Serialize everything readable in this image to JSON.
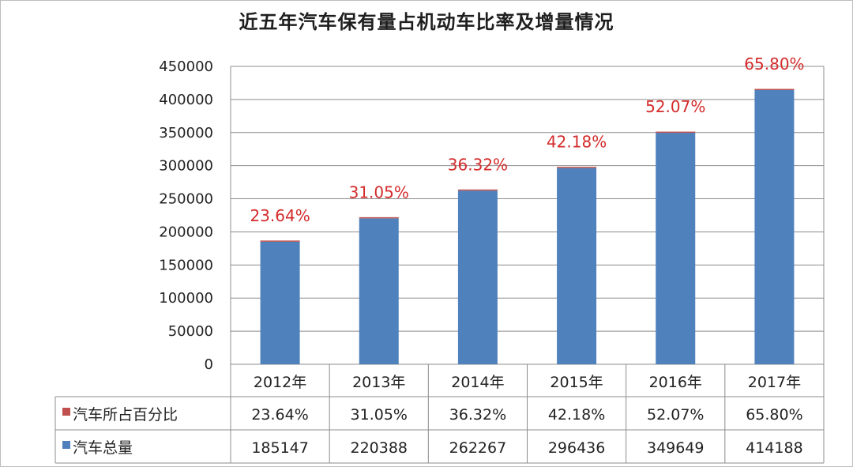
{
  "chart_data": {
    "type": "bar",
    "title": "近五年汽车保有量占机动车比率及增量情况",
    "categories": [
      "2012年",
      "2013年",
      "2014年",
      "2015年",
      "2016年",
      "2017年"
    ],
    "ylim": [
      0,
      450000
    ],
    "yticks": [
      "0",
      "50000",
      "100000",
      "150000",
      "200000",
      "250000",
      "300000",
      "350000",
      "400000",
      "450000"
    ],
    "grid": true,
    "series": [
      {
        "name": "汽车所占百分比",
        "color": "#c0504d",
        "values": [
          23.64,
          31.05,
          36.32,
          42.18,
          52.07,
          65.8
        ],
        "labels": [
          "23.64%",
          "31.05%",
          "36.32%",
          "42.18%",
          "52.07%",
          "65.80%"
        ]
      },
      {
        "name": "汽车总量",
        "color": "#4f81bd",
        "values": [
          185147,
          220388,
          262267,
          296436,
          349649,
          414188
        ],
        "labels": [
          "185147",
          "220388",
          "262267",
          "296436",
          "349649",
          "414188"
        ]
      }
    ],
    "data_labels": [
      "23.64%",
      "31.05%",
      "36.32%",
      "42.18%",
      "52.07%",
      "65.80%"
    ],
    "data_table": true
  }
}
